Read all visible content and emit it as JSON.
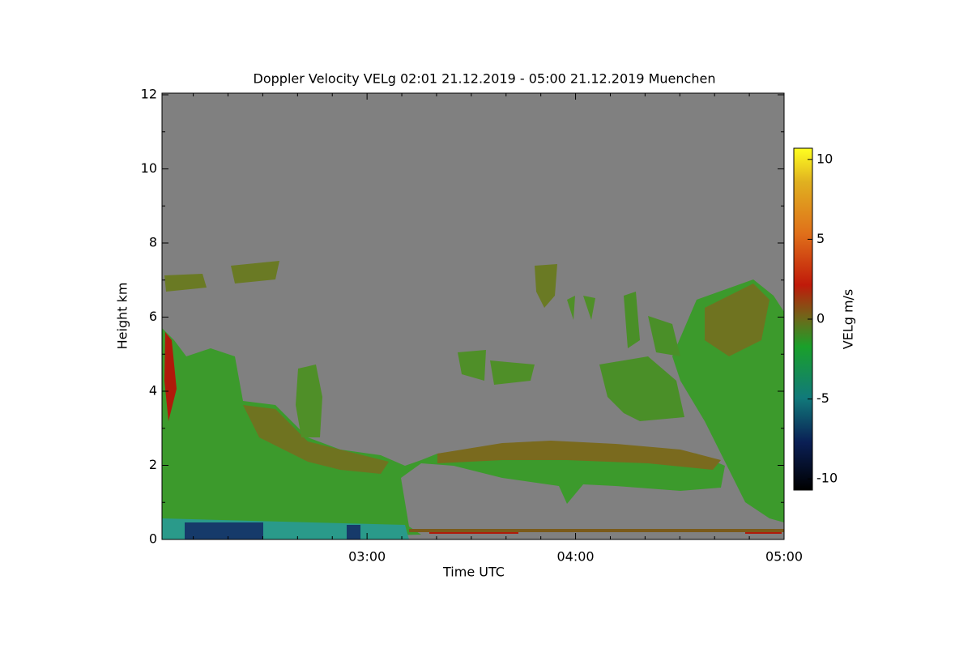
{
  "chart_data": {
    "type": "heatmap",
    "title": "Doppler Velocity VELg   02:01 21.12.2019 - 05:00 21.12.2019 Muenchen",
    "xlabel": "Time UTC",
    "ylabel": "Height km",
    "colorbar_label": "VELg m/s",
    "xlim": [
      121,
      300
    ],
    "xticks": [
      {
        "value": 180,
        "label": "03:00"
      },
      {
        "value": 240,
        "label": "04:00"
      },
      {
        "value": 300,
        "label": "05:00"
      }
    ],
    "xminorticks": [
      130,
      140,
      150,
      160,
      170,
      190,
      200,
      210,
      220,
      230,
      250,
      260,
      270,
      280,
      290
    ],
    "ylim": [
      0,
      12
    ],
    "yticks": [
      0,
      2,
      4,
      6,
      8,
      10,
      12
    ],
    "yminorticks": [
      1,
      3,
      5,
      7,
      9,
      11
    ],
    "clim": [
      -10.7,
      10.7
    ],
    "cticks": [
      -10,
      -5,
      0,
      5,
      10
    ]
  }
}
